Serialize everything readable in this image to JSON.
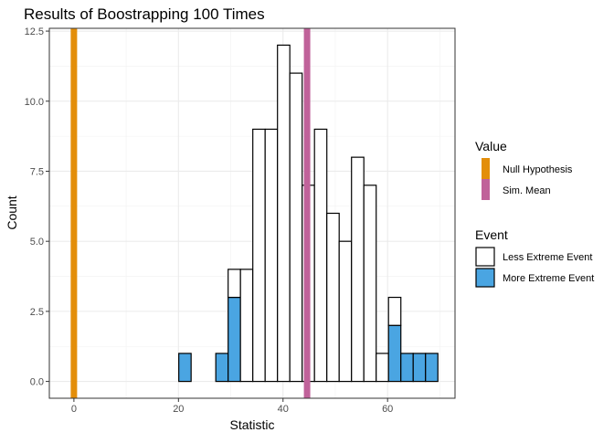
{
  "chart_data": {
    "type": "bar",
    "subtype": "stacked-histogram",
    "title": "Results of Boostrapping 100 Times",
    "xlabel": "Statistic",
    "ylabel": "Count",
    "xlim": [
      -4.7,
      72.9
    ],
    "ylim": [
      -0.6,
      12.6
    ],
    "x_ticks": [
      "0",
      "20",
      "40",
      "60"
    ],
    "y_ticks": [
      "0.0",
      "2.5",
      "5.0",
      "7.5",
      "10.0",
      "12.5"
    ],
    "grid": true,
    "bin_width": 2.36,
    "bin_centers": [
      0,
      2.36,
      4.72,
      7.08,
      9.44,
      11.8,
      14.16,
      16.52,
      18.88,
      21.24,
      23.6,
      25.96,
      28.32,
      30.68,
      33.04,
      35.4,
      37.76,
      40.12,
      42.48,
      44.84,
      47.2,
      49.56,
      51.92,
      54.28,
      56.64,
      59.0,
      61.36,
      63.72,
      66.08,
      68.44
    ],
    "series": [
      {
        "name": "More Extreme Event",
        "color": "#4AA5E2",
        "values": [
          0,
          0,
          0,
          0,
          0,
          0,
          0,
          0,
          0,
          1,
          0,
          0,
          1,
          3,
          0,
          0,
          0,
          0,
          0,
          0,
          0,
          0,
          0,
          0,
          0,
          0,
          2,
          1,
          1,
          1
        ]
      },
      {
        "name": "Less Extreme Event",
        "color": "#FFFFFF",
        "values": [
          0,
          0,
          0,
          0,
          0,
          0,
          0,
          0,
          0,
          0,
          0,
          0,
          0,
          1,
          4,
          9,
          9,
          12,
          11,
          7,
          9,
          6,
          5,
          8,
          7,
          1,
          1,
          0,
          0,
          0
        ]
      }
    ],
    "vlines": [
      {
        "name": "Null Hypothesis",
        "x": 0,
        "color": "#E38E0A"
      },
      {
        "name": "Sim. Mean",
        "x": 44.6,
        "color": "#C0629A"
      }
    ],
    "legends": [
      {
        "title": "Value",
        "items": [
          "Null Hypothesis",
          "Sim. Mean"
        ]
      },
      {
        "title": "Event",
        "items": [
          "Less Extreme Event",
          "More Extreme Event"
        ]
      }
    ],
    "legend_position": "right"
  }
}
